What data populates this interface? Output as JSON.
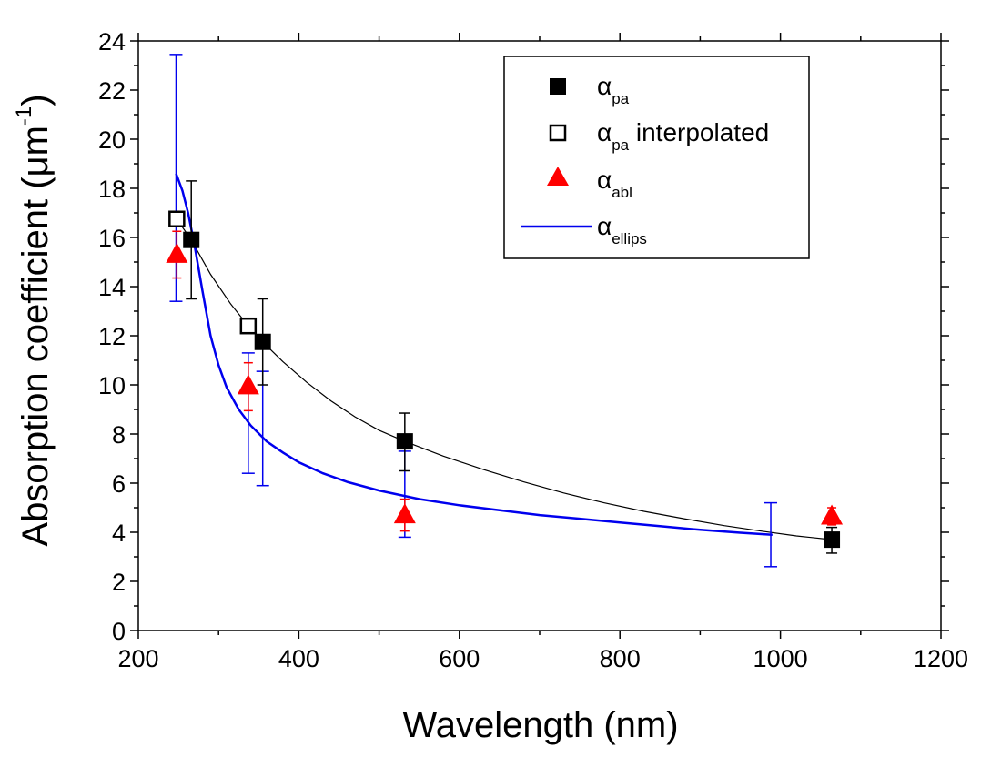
{
  "chart_data": {
    "type": "scatter",
    "title": "",
    "xlabel": "Wavelength (nm)",
    "ylabel_main": "Absorption coefficient (",
    "ylabel_unit": "μm",
    "ylabel_exp": "-1",
    "ylabel_close": ")",
    "xlim": [
      200,
      1200
    ],
    "ylim": [
      0,
      24
    ],
    "xticks": [
      200,
      400,
      600,
      800,
      1000,
      1200
    ],
    "yticks": [
      0,
      2,
      4,
      6,
      8,
      10,
      12,
      14,
      16,
      18,
      20,
      22,
      24
    ],
    "grid": false,
    "legend_position": "top-right",
    "series": [
      {
        "name_main": "α",
        "name_sub": "pa",
        "name_suffix": "",
        "marker": "filled-square",
        "color": "#000000",
        "points": [
          {
            "x": 266,
            "y": 15.9,
            "err_low": 13.5,
            "err_high": 18.3
          },
          {
            "x": 355,
            "y": 11.75,
            "err_low": 10.0,
            "err_high": 13.5
          },
          {
            "x": 532,
            "y": 7.7,
            "err_low": 6.5,
            "err_high": 8.85
          },
          {
            "x": 1064,
            "y": 3.7,
            "err_low": 3.15,
            "err_high": 4.2
          }
        ]
      },
      {
        "name_main": "α",
        "name_sub": "pa",
        "name_suffix": " interpolated",
        "marker": "open-square",
        "color": "#000000",
        "points": [
          {
            "x": 248,
            "y": 16.75
          },
          {
            "x": 337,
            "y": 12.4
          }
        ]
      },
      {
        "name_main": "α",
        "name_sub": "abl",
        "name_suffix": "",
        "marker": "triangle",
        "color": "#ff0000",
        "points": [
          {
            "x": 248,
            "y": 15.3,
            "err_low": 14.35,
            "err_high": 16.25
          },
          {
            "x": 337,
            "y": 9.95,
            "err_low": 8.95,
            "err_high": 10.9
          },
          {
            "x": 532,
            "y": 4.7,
            "err_low": 4.05,
            "err_high": 5.35
          },
          {
            "x": 1064,
            "y": 4.65,
            "err_low": 4.3,
            "err_high": 5.0
          }
        ]
      },
      {
        "name_main": "α",
        "name_sub": "ellips",
        "name_suffix": "",
        "marker": "line",
        "color": "#0000ee",
        "curve": [
          {
            "x": 247,
            "y": 18.6
          },
          {
            "x": 255,
            "y": 17.9
          },
          {
            "x": 262,
            "y": 17.0
          },
          {
            "x": 270,
            "y": 15.7
          },
          {
            "x": 280,
            "y": 13.8
          },
          {
            "x": 290,
            "y": 12.0
          },
          {
            "x": 300,
            "y": 10.8
          },
          {
            "x": 310,
            "y": 9.9
          },
          {
            "x": 325,
            "y": 9.0
          },
          {
            "x": 340,
            "y": 8.35
          },
          {
            "x": 360,
            "y": 7.7
          },
          {
            "x": 380,
            "y": 7.25
          },
          {
            "x": 400,
            "y": 6.85
          },
          {
            "x": 430,
            "y": 6.4
          },
          {
            "x": 460,
            "y": 6.05
          },
          {
            "x": 500,
            "y": 5.7
          },
          {
            "x": 550,
            "y": 5.35
          },
          {
            "x": 600,
            "y": 5.1
          },
          {
            "x": 650,
            "y": 4.9
          },
          {
            "x": 700,
            "y": 4.7
          },
          {
            "x": 750,
            "y": 4.55
          },
          {
            "x": 800,
            "y": 4.4
          },
          {
            "x": 850,
            "y": 4.25
          },
          {
            "x": 900,
            "y": 4.1
          },
          {
            "x": 950,
            "y": 3.98
          },
          {
            "x": 990,
            "y": 3.9
          }
        ],
        "errorbars": [
          {
            "x": 247,
            "y": 18.6,
            "err_low": 13.4,
            "err_high": 23.45
          },
          {
            "x": 337,
            "y": 8.45,
            "err_low": 6.4,
            "err_high": 11.3
          },
          {
            "x": 355,
            "y": 8.0,
            "err_low": 5.9,
            "err_high": 10.55
          },
          {
            "x": 532,
            "y": 5.45,
            "err_low": 3.8,
            "err_high": 7.3
          },
          {
            "x": 988,
            "y": 3.9,
            "err_low": 2.6,
            "err_high": 5.2
          }
        ]
      }
    ],
    "fit_line": {
      "color": "#000000",
      "curve": [
        {
          "x": 248,
          "y": 16.75
        },
        {
          "x": 266,
          "y": 15.9
        },
        {
          "x": 290,
          "y": 14.5
        },
        {
          "x": 315,
          "y": 13.3
        },
        {
          "x": 337,
          "y": 12.4
        },
        {
          "x": 355,
          "y": 11.75
        },
        {
          "x": 380,
          "y": 10.95
        },
        {
          "x": 410,
          "y": 10.1
        },
        {
          "x": 440,
          "y": 9.35
        },
        {
          "x": 470,
          "y": 8.7
        },
        {
          "x": 500,
          "y": 8.15
        },
        {
          "x": 532,
          "y": 7.7
        },
        {
          "x": 580,
          "y": 7.1
        },
        {
          "x": 630,
          "y": 6.55
        },
        {
          "x": 680,
          "y": 6.05
        },
        {
          "x": 730,
          "y": 5.6
        },
        {
          "x": 780,
          "y": 5.2
        },
        {
          "x": 830,
          "y": 4.85
        },
        {
          "x": 880,
          "y": 4.55
        },
        {
          "x": 930,
          "y": 4.27
        },
        {
          "x": 980,
          "y": 4.03
        },
        {
          "x": 1020,
          "y": 3.85
        },
        {
          "x": 1064,
          "y": 3.7
        }
      ]
    }
  }
}
